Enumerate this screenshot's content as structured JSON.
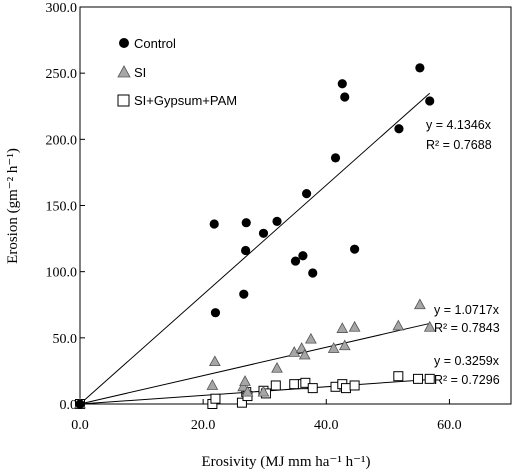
{
  "chart_data": {
    "type": "scatter",
    "xlabel": "Erosivity (MJ mm ha⁻¹ h⁻¹)",
    "ylabel": "Erosion (gm⁻² h⁻¹)",
    "xlim": [
      0,
      70
    ],
    "ylim": [
      0,
      300
    ],
    "x_ticks": [
      "0.0",
      "20.0",
      "40.0",
      "60.0"
    ],
    "y_ticks": [
      "0.0",
      "50.0",
      "100.0",
      "150.0",
      "200.0",
      "250.0",
      "300.0"
    ],
    "legend_position": "top-left",
    "grid": false,
    "series": [
      {
        "name": "Control",
        "marker": "filled-circle",
        "color": "#000000",
        "slope": 4.1346,
        "equation": "y = 4.1346x",
        "r2": "R² = 0.7688",
        "points": [
          [
            0,
            0
          ],
          [
            21.8,
            136
          ],
          [
            22.0,
            69
          ],
          [
            26.6,
            83
          ],
          [
            26.9,
            116
          ],
          [
            27.0,
            137
          ],
          [
            29.8,
            129
          ],
          [
            32.0,
            138
          ],
          [
            35.0,
            108
          ],
          [
            36.2,
            112
          ],
          [
            36.8,
            159
          ],
          [
            37.8,
            99
          ],
          [
            41.5,
            186
          ],
          [
            42.6,
            242
          ],
          [
            43.0,
            232
          ],
          [
            44.6,
            117
          ],
          [
            51.8,
            208
          ],
          [
            55.2,
            254
          ],
          [
            56.8,
            229
          ]
        ]
      },
      {
        "name": "SI",
        "marker": "gray-triangle",
        "color": "#a6a6a6",
        "slope": 1.0717,
        "equation": "y = 1.0717x",
        "r2": "R² = 0.7843",
        "points": [
          [
            0,
            0
          ],
          [
            21.5,
            14
          ],
          [
            21.9,
            32
          ],
          [
            26.5,
            13
          ],
          [
            26.8,
            17
          ],
          [
            27.2,
            9
          ],
          [
            29.8,
            9
          ],
          [
            32.0,
            27
          ],
          [
            34.8,
            39
          ],
          [
            36.0,
            42
          ],
          [
            36.5,
            37
          ],
          [
            37.5,
            49
          ],
          [
            41.2,
            42
          ],
          [
            42.6,
            57
          ],
          [
            43.0,
            44
          ],
          [
            44.6,
            58
          ],
          [
            51.7,
            59
          ],
          [
            55.2,
            75
          ],
          [
            56.8,
            58
          ]
        ]
      },
      {
        "name": "SI+Gypsum+PAM",
        "marker": "open-square",
        "color": "#000000",
        "slope": 0.3259,
        "equation": "y = 0.3259x",
        "r2": "R² = 0.7296",
        "points": [
          [
            0,
            0
          ],
          [
            21.5,
            0
          ],
          [
            22.0,
            4
          ],
          [
            26.3,
            1
          ],
          [
            27.0,
            9
          ],
          [
            27.2,
            6
          ],
          [
            29.8,
            10
          ],
          [
            30.2,
            8
          ],
          [
            31.8,
            14
          ],
          [
            34.8,
            15
          ],
          [
            36.2,
            15
          ],
          [
            36.6,
            16
          ],
          [
            37.8,
            12
          ],
          [
            41.5,
            13
          ],
          [
            42.6,
            15
          ],
          [
            43.2,
            12
          ],
          [
            44.6,
            14
          ],
          [
            51.7,
            21
          ],
          [
            54.9,
            19
          ],
          [
            56.8,
            19
          ]
        ]
      }
    ]
  }
}
